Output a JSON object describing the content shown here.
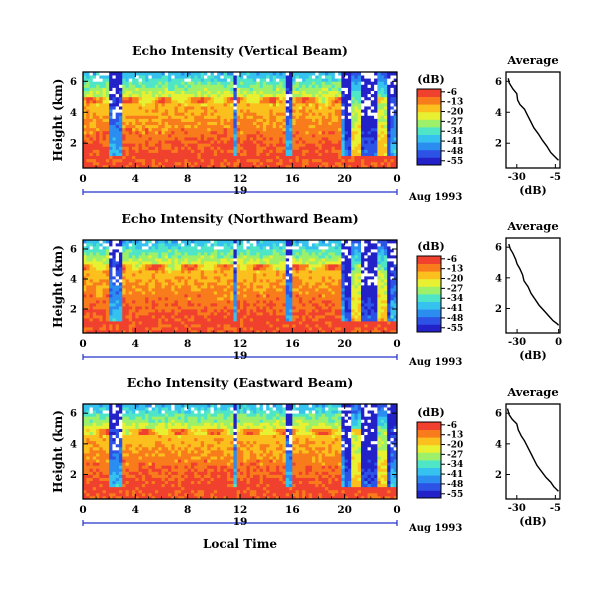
{
  "figure": {
    "x_axis_label": "Local Time",
    "date_label": "Aug 1993",
    "day_label": "19",
    "height_label": "Height (km)",
    "cb_unit": "(dB)",
    "avg_title": "Average",
    "avg_xlabel": "(dB)"
  },
  "colors": {
    "scale": [
      "#2222c8",
      "#2c52e6",
      "#2b8df0",
      "#36c2ee",
      "#4fe6c8",
      "#9cf06a",
      "#e8f032",
      "#fcc01e",
      "#f87c1c",
      "#f0402e"
    ],
    "no_data": "#ffffff",
    "day_bar": "#2233cc"
  },
  "chart_data": [
    {
      "type": "heatmap",
      "title": "Echo Intensity (Vertical Beam)",
      "xlabel": "Local Time",
      "ylabel": "Height (km)",
      "x_ticks": [
        "0",
        "4",
        "8",
        "12",
        "16",
        "20",
        "0"
      ],
      "y_ticks": [
        "2",
        "4",
        "6"
      ],
      "xlim": [
        0,
        24
      ],
      "ylim": [
        0.4,
        6.6
      ],
      "colorbar_unit": "(dB)",
      "colorbar_ticks": [
        "-6",
        "-13",
        "-20",
        "-27",
        "-34",
        "-41",
        "-48",
        "-55"
      ],
      "color_range": [
        -58,
        -4
      ],
      "date_label": "Aug 1993",
      "day_label": "19",
      "average_profile": {
        "title": "Average",
        "xlabel": "(dB)",
        "x_ticks": [
          "-30",
          "-5"
        ],
        "y_ticks": [
          "2",
          "4",
          "6"
        ],
        "xlim": [
          -37,
          -2
        ],
        "ylim": [
          0.4,
          6.6
        ],
        "points": [
          [
            -35.5,
            6.2
          ],
          [
            -35,
            5.9
          ],
          [
            -32.5,
            5.5
          ],
          [
            -30,
            5.2
          ],
          [
            -29.5,
            4.8
          ],
          [
            -28,
            4.5
          ],
          [
            -25,
            4.2
          ],
          [
            -23,
            3.8
          ],
          [
            -21,
            3.4
          ],
          [
            -19,
            3.0
          ],
          [
            -16,
            2.6
          ],
          [
            -13.5,
            2.2
          ],
          [
            -10.5,
            1.8
          ],
          [
            -8,
            1.4
          ],
          [
            -6,
            1.2
          ],
          [
            -4,
            1.0
          ],
          [
            -3,
            0.9
          ]
        ]
      }
    },
    {
      "type": "heatmap",
      "title": "Echo Intensity (Northward Beam)",
      "xlabel": "Local Time",
      "ylabel": "Height (km)",
      "x_ticks": [
        "0",
        "4",
        "8",
        "12",
        "16",
        "20",
        "0"
      ],
      "y_ticks": [
        "2",
        "4",
        "6"
      ],
      "xlim": [
        0,
        24
      ],
      "ylim": [
        0.4,
        6.6
      ],
      "colorbar_unit": "(dB)",
      "colorbar_ticks": [
        "-6",
        "-13",
        "-20",
        "-27",
        "-34",
        "-41",
        "-48",
        "-55"
      ],
      "color_range": [
        -58,
        -4
      ],
      "date_label": "Aug 1993",
      "day_label": "19",
      "average_profile": {
        "title": "Average",
        "xlabel": "(dB)",
        "x_ticks": [
          "-30",
          "0"
        ],
        "y_ticks": [
          "2",
          "4",
          "6"
        ],
        "xlim": [
          -38,
          1
        ],
        "ylim": [
          0.4,
          6.6
        ],
        "points": [
          [
            -36,
            6.2
          ],
          [
            -35,
            5.9
          ],
          [
            -33,
            5.6
          ],
          [
            -31,
            5.2
          ],
          [
            -30,
            4.9
          ],
          [
            -28,
            4.6
          ],
          [
            -26,
            4.2
          ],
          [
            -25,
            3.8
          ],
          [
            -22,
            3.4
          ],
          [
            -20,
            3.0
          ],
          [
            -17,
            2.6
          ],
          [
            -14,
            2.2
          ],
          [
            -10,
            1.8
          ],
          [
            -7,
            1.5
          ],
          [
            -4,
            1.2
          ],
          [
            -1,
            1.0
          ],
          [
            0,
            0.9
          ]
        ]
      }
    },
    {
      "type": "heatmap",
      "title": "Echo Intensity (Eastward Beam)",
      "xlabel": "Local Time",
      "ylabel": "Height (km)",
      "x_ticks": [
        "0",
        "4",
        "8",
        "12",
        "16",
        "20",
        "0"
      ],
      "y_ticks": [
        "2",
        "4",
        "6"
      ],
      "xlim": [
        0,
        24
      ],
      "ylim": [
        0.4,
        6.6
      ],
      "colorbar_unit": "(dB)",
      "colorbar_ticks": [
        "-6",
        "-13",
        "-20",
        "-27",
        "-34",
        "-41",
        "-48",
        "-55"
      ],
      "color_range": [
        -58,
        -4
      ],
      "date_label": "Aug 1993",
      "day_label": "19",
      "average_profile": {
        "title": "Average",
        "xlabel": "(dB)",
        "x_ticks": [
          "-30",
          "-5"
        ],
        "y_ticks": [
          "2",
          "4",
          "6"
        ],
        "xlim": [
          -37,
          -2
        ],
        "ylim": [
          0.4,
          6.6
        ],
        "points": [
          [
            -36,
            6.3
          ],
          [
            -35,
            5.9
          ],
          [
            -33,
            5.6
          ],
          [
            -30,
            5.3
          ],
          [
            -29,
            4.9
          ],
          [
            -27,
            4.5
          ],
          [
            -25,
            4.2
          ],
          [
            -23,
            3.8
          ],
          [
            -21,
            3.4
          ],
          [
            -19,
            3.0
          ],
          [
            -17,
            2.6
          ],
          [
            -14,
            2.2
          ],
          [
            -11,
            1.8
          ],
          [
            -8,
            1.5
          ],
          [
            -6,
            1.2
          ],
          [
            -4,
            1.0
          ],
          [
            -3,
            0.9
          ]
        ]
      }
    }
  ]
}
